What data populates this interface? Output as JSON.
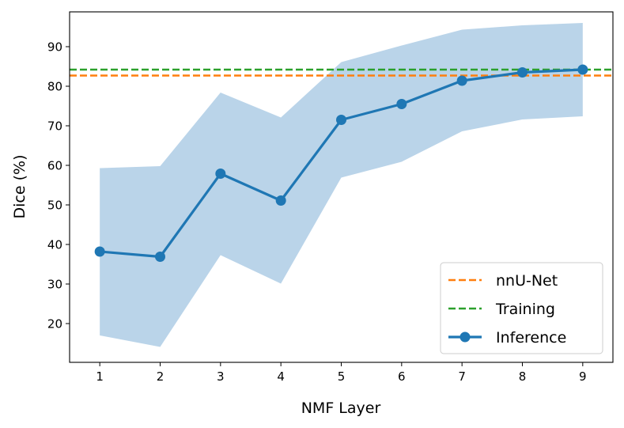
{
  "chart_data": {
    "type": "line",
    "xlabel": "NMF Layer",
    "ylabel": "Dice (%)",
    "x": [
      1,
      2,
      3,
      4,
      5,
      6,
      7,
      8,
      9
    ],
    "xlim": [
      0.5,
      9.5
    ],
    "ylim": [
      10.2,
      98.8
    ],
    "yticks": [
      20,
      30,
      40,
      50,
      60,
      70,
      80,
      90
    ],
    "grid": false,
    "legend_position": "lower-right",
    "series": [
      {
        "name": "Inference",
        "style": "line-marker",
        "color": "#1f77b4",
        "values": [
          38.2,
          36.9,
          57.9,
          51.1,
          71.5,
          75.5,
          81.4,
          83.5,
          84.2
        ],
        "band_upper": [
          59.3,
          59.8,
          78.4,
          72.1,
          86.1,
          90.3,
          94.3,
          95.4,
          96.0
        ],
        "band_lower": [
          17.0,
          14.1,
          37.3,
          30.1,
          56.9,
          60.9,
          68.6,
          71.6,
          72.4
        ],
        "band_color": "#bad4e9"
      },
      {
        "name": "nnU-Net",
        "style": "hline-dashed",
        "color": "#ff7f0e",
        "value": 82.7
      },
      {
        "name": "Training",
        "style": "hline-dashed",
        "color": "#2ca02c",
        "value": 84.2
      }
    ],
    "legend": [
      {
        "label": "nnU-Net",
        "color": "#ff7f0e",
        "style": "dashed"
      },
      {
        "label": "Training",
        "color": "#2ca02c",
        "style": "dashed"
      },
      {
        "label": "Inference",
        "color": "#1f77b4",
        "style": "line-marker"
      }
    ]
  }
}
